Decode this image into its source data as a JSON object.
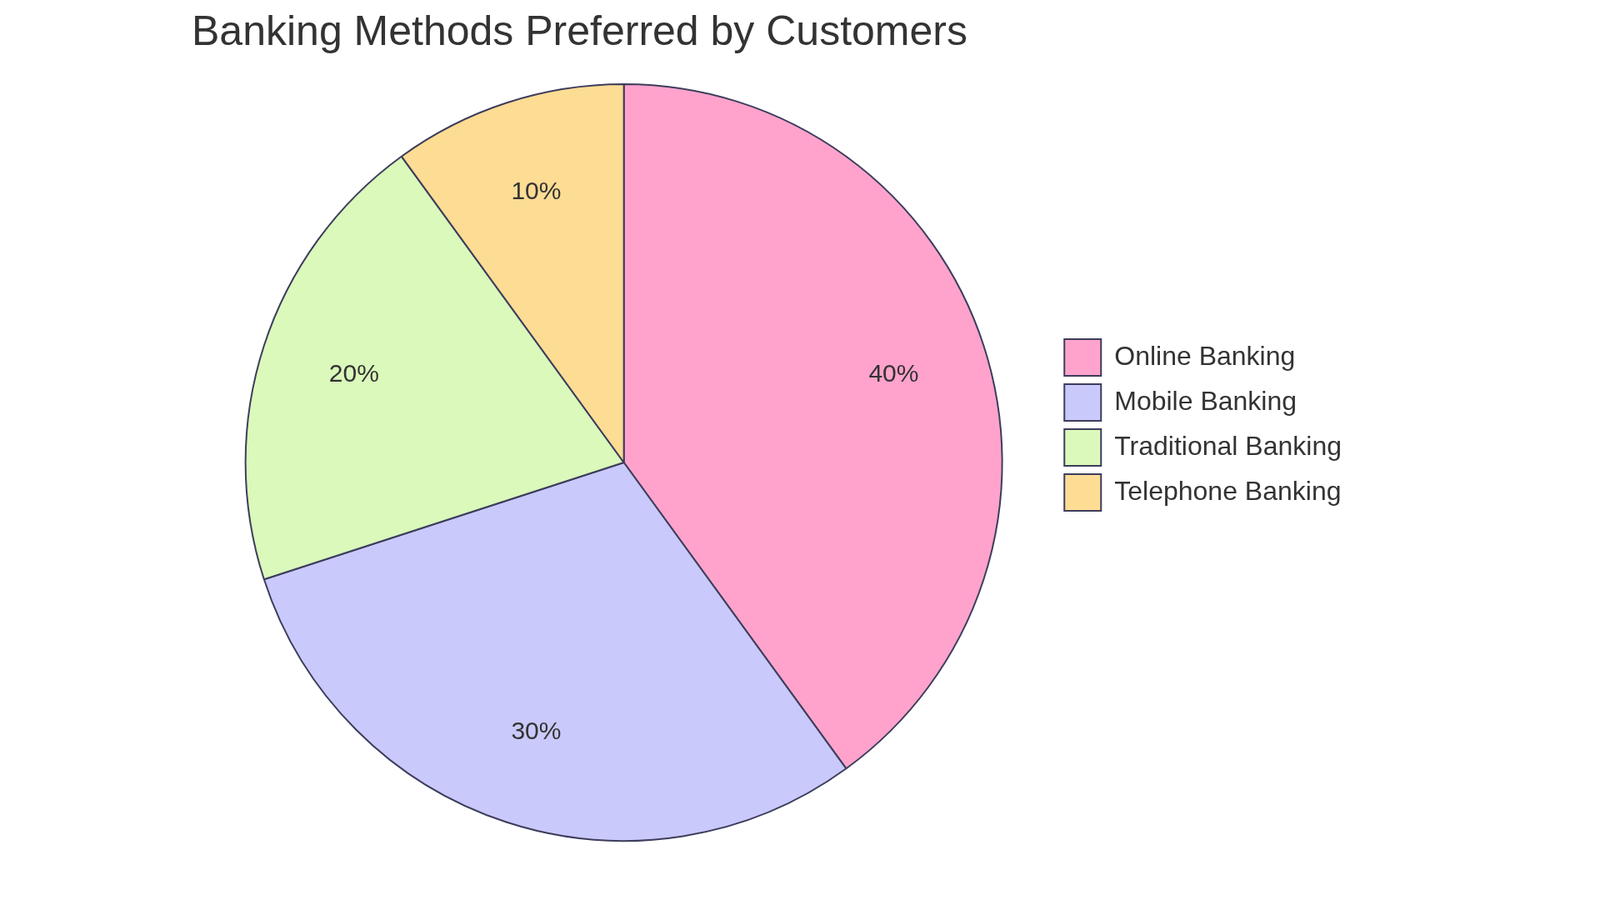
{
  "chart_data": {
    "type": "pie",
    "title": "Banking Methods Preferred by Customers",
    "categories": [
      "Online Banking",
      "Mobile Banking",
      "Traditional Banking",
      "Telephone Banking"
    ],
    "values": [
      40,
      30,
      20,
      10
    ],
    "value_labels": [
      "40%",
      "30%",
      "20%",
      "10%"
    ],
    "colors": [
      "#ffa3cc",
      "#c9c9fc",
      "#daf9bb",
      "#fddc94"
    ],
    "legend": "right",
    "data_labels": true
  }
}
